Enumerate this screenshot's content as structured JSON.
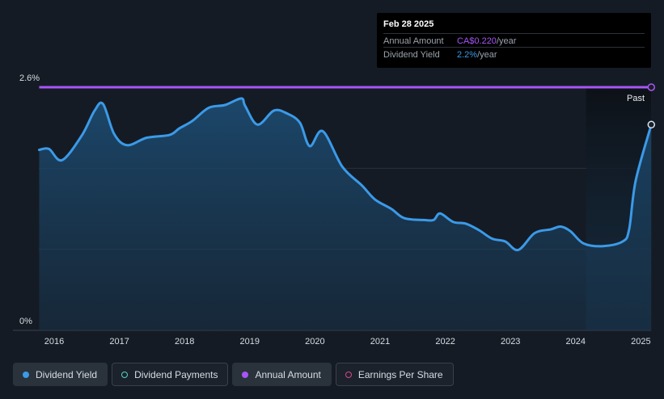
{
  "tooltip": {
    "date": "Feb 28 2025",
    "rows": [
      {
        "label": "Annual Amount",
        "value": "CA$0.220",
        "unit": "/year",
        "color": "#a855f7"
      },
      {
        "label": "Dividend Yield",
        "value": "2.2%",
        "unit": "/year",
        "color": "#3b9ae8"
      }
    ]
  },
  "past_label": "Past",
  "legend": [
    {
      "label": "Dividend Yield",
      "color": "#3b9ae8",
      "filled": true,
      "active": true
    },
    {
      "label": "Dividend Payments",
      "color": "#5ad1c4",
      "filled": false,
      "active": false
    },
    {
      "label": "Annual Amount",
      "color": "#a855f7",
      "filled": true,
      "active": true
    },
    {
      "label": "Earnings Per Share",
      "color": "#d6478a",
      "filled": false,
      "active": false
    }
  ],
  "chart_data": {
    "type": "line",
    "ylim": [
      0,
      2.6
    ],
    "y_tick_labels": [
      "0%",
      "2.6%"
    ],
    "x_tick_labels": [
      "2016",
      "2017",
      "2018",
      "2019",
      "2020",
      "2021",
      "2022",
      "2023",
      "2024",
      "2025"
    ],
    "grid": true,
    "series": [
      {
        "name": "Dividend Yield",
        "color": "#3b9ae8",
        "x": [
          2015.77,
          2015.92,
          2016.12,
          2016.42,
          2016.62,
          2016.75,
          2016.92,
          2017.12,
          2017.42,
          2017.77,
          2017.92,
          2018.12,
          2018.37,
          2018.62,
          2018.87,
          2018.93,
          2019.12,
          2019.37,
          2019.57,
          2019.77,
          2019.92,
          2020.12,
          2020.42,
          2020.72,
          2020.92,
          2021.17,
          2021.37,
          2021.67,
          2021.82,
          2021.92,
          2022.12,
          2022.32,
          2022.52,
          2022.72,
          2022.92,
          2023.12,
          2023.37,
          2023.62,
          2023.77,
          2023.92,
          2024.12,
          2024.42,
          2024.72,
          2024.82,
          2024.92,
          2025.16
        ],
        "y": [
          1.93,
          1.94,
          1.82,
          2.08,
          2.35,
          2.42,
          2.1,
          1.98,
          2.06,
          2.09,
          2.16,
          2.24,
          2.38,
          2.41,
          2.48,
          2.4,
          2.2,
          2.35,
          2.32,
          2.22,
          1.97,
          2.13,
          1.75,
          1.55,
          1.4,
          1.3,
          1.2,
          1.18,
          1.18,
          1.25,
          1.16,
          1.14,
          1.07,
          0.98,
          0.95,
          0.86,
          1.04,
          1.08,
          1.11,
          1.06,
          0.93,
          0.9,
          0.95,
          1.08,
          1.6,
          2.2
        ]
      },
      {
        "name": "Annual Amount",
        "color": "#a855f7",
        "x": [
          2015.77,
          2025.16
        ],
        "y": [
          2.6,
          2.6
        ]
      }
    ]
  }
}
